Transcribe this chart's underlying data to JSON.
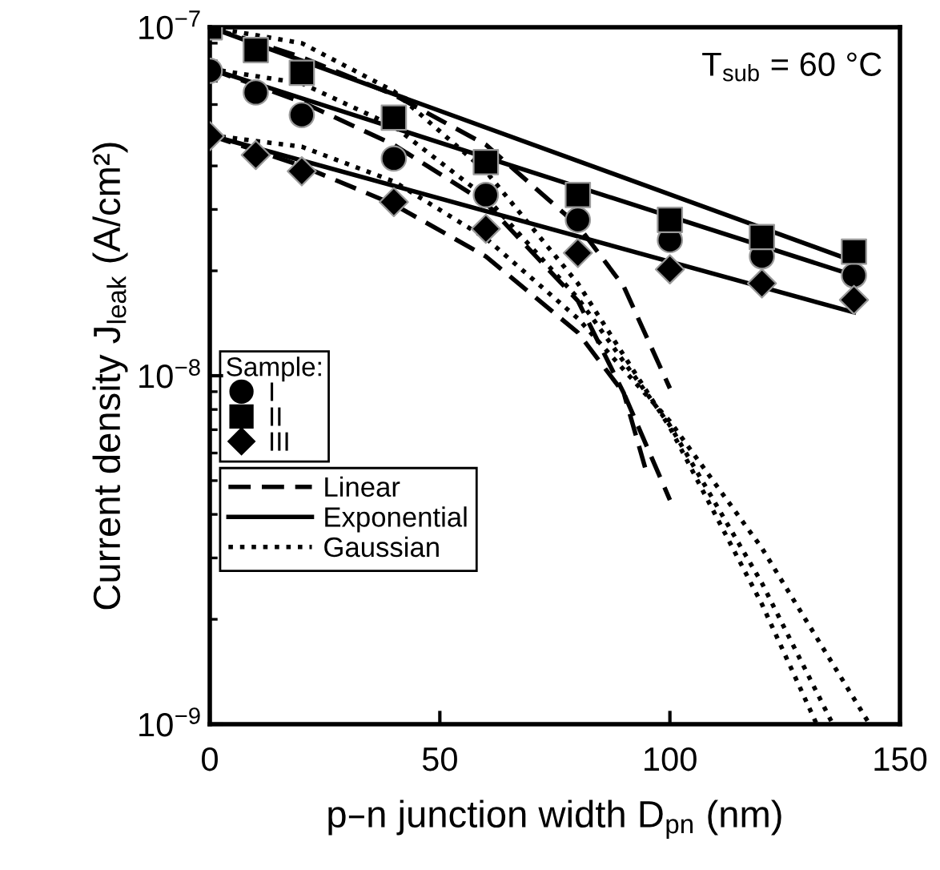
{
  "chart_data": {
    "type": "scatter",
    "xlabel": "p–n junction width D$_{pn}$ (nm)",
    "ylabel": "Current density J$_{leak}$ (A/cm²)",
    "annotations": [
      "T$_{sub}$ = 60 °C"
    ],
    "legend_title": "Sample:",
    "legend": "left",
    "log": "y",
    "grid": false,
    "xlim": [
      0,
      150
    ],
    "xticks": [
      0,
      50,
      100,
      150
    ],
    "ylim": [
      1e-09,
      1e-07
    ],
    "yticks": [
      {
        "value": 1e-09,
        "label": "10$^{−9}$"
      },
      {
        "value": 1e-08,
        "label": "10$^{−8}$"
      },
      {
        "value": 1e-07,
        "label": "10$^{−7}$"
      }
    ],
    "series": [
      {
        "name": "I",
        "type": "scatter",
        "marker": "circle",
        "color": "#000000",
        "x": [
          0,
          10,
          20,
          40,
          60,
          80,
          100,
          120,
          140
        ],
        "values": [
          7.5e-08,
          6.5e-08,
          5.6e-08,
          4.2e-08,
          3.3e-08,
          2.8e-08,
          2.45e-08,
          2.2e-08,
          1.94e-08
        ]
      },
      {
        "name": "II",
        "type": "scatter",
        "marker": "square",
        "color": "#000000",
        "x": [
          0,
          10,
          20,
          40,
          60,
          80,
          100,
          120,
          140
        ],
        "values": [
          1e-07,
          8.6e-08,
          7.4e-08,
          5.5e-08,
          4.1e-08,
          3.3e-08,
          2.8e-08,
          2.5e-08,
          2.27e-08
        ]
      },
      {
        "name": "III",
        "type": "scatter",
        "marker": "diamond",
        "color": "#000000",
        "x": [
          0,
          10,
          20,
          40,
          60,
          80,
          100,
          120,
          140
        ],
        "values": [
          4.87e-08,
          4.3e-08,
          3.86e-08,
          3.15e-08,
          2.64e-08,
          2.25e-08,
          2.02e-08,
          1.84e-08,
          1.65e-08
        ]
      },
      {
        "name": "Linear",
        "type": "line",
        "line_style": "dashed",
        "color": "#000000",
        "x": [
          0,
          20,
          40,
          60,
          80,
          90,
          100
        ],
        "values": [
          1e-07,
          8.2e-08,
          6.4e-08,
          4.6e-08,
          2.7e-08,
          1.8e-08,
          9.2e-09
        ]
      },
      {
        "type": "line",
        "line_style": "dashed",
        "color": "#000000",
        "x": [
          0,
          20,
          40,
          60,
          80,
          90,
          94.7
        ],
        "values": [
          7.6e-08,
          6.1e-08,
          4.6e-08,
          3.13e-08,
          1.64e-08,
          8.9e-09,
          5.4e-09
        ]
      },
      {
        "type": "line",
        "line_style": "dashed",
        "color": "#000000",
        "x": [
          0,
          20,
          40,
          60,
          80,
          90,
          100
        ],
        "values": [
          4.9e-08,
          4e-08,
          3.1e-08,
          2.2e-08,
          1.33e-08,
          8.9e-09,
          4.4e-09
        ]
      },
      {
        "name": "Exponential",
        "type": "line",
        "line_style": "solid",
        "color": "#000000",
        "x": [
          0,
          140
        ],
        "values": [
          1e-07,
          2.13e-08
        ]
      },
      {
        "type": "line",
        "line_style": "solid",
        "color": "#000000",
        "x": [
          0,
          140
        ],
        "values": [
          7.6e-08,
          1.94e-08
        ]
      },
      {
        "type": "line",
        "line_style": "solid",
        "color": "#000000",
        "x": [
          0,
          140
        ],
        "values": [
          4.9e-08,
          1.52e-08
        ]
      },
      {
        "name": "Gaussian",
        "type": "line",
        "line_style": "dotted",
        "color": "#000000",
        "x": [
          0,
          20,
          40,
          60,
          80,
          100,
          120,
          131.9
        ],
        "values": [
          1e-07,
          9e-08,
          6.55e-08,
          3.86e-08,
          1.84e-08,
          7.1e-09,
          2.21e-09,
          1e-09
        ]
      },
      {
        "type": "line",
        "line_style": "dotted",
        "color": "#000000",
        "x": [
          0,
          20,
          40,
          60,
          80,
          100,
          120,
          135.4
        ],
        "values": [
          7.6e-08,
          6.9e-08,
          5.2e-08,
          3.25e-08,
          1.67e-08,
          7.2e-09,
          2.54e-09,
          1e-09
        ]
      },
      {
        "type": "line",
        "line_style": "dotted",
        "color": "#000000",
        "x": [
          0,
          20,
          40,
          60,
          80,
          100,
          120,
          143.4
        ],
        "values": [
          4.9e-08,
          4.54e-08,
          3.61e-08,
          2.48e-08,
          1.46e-08,
          7.4e-09,
          3.2e-09,
          1e-09
        ]
      }
    ]
  }
}
